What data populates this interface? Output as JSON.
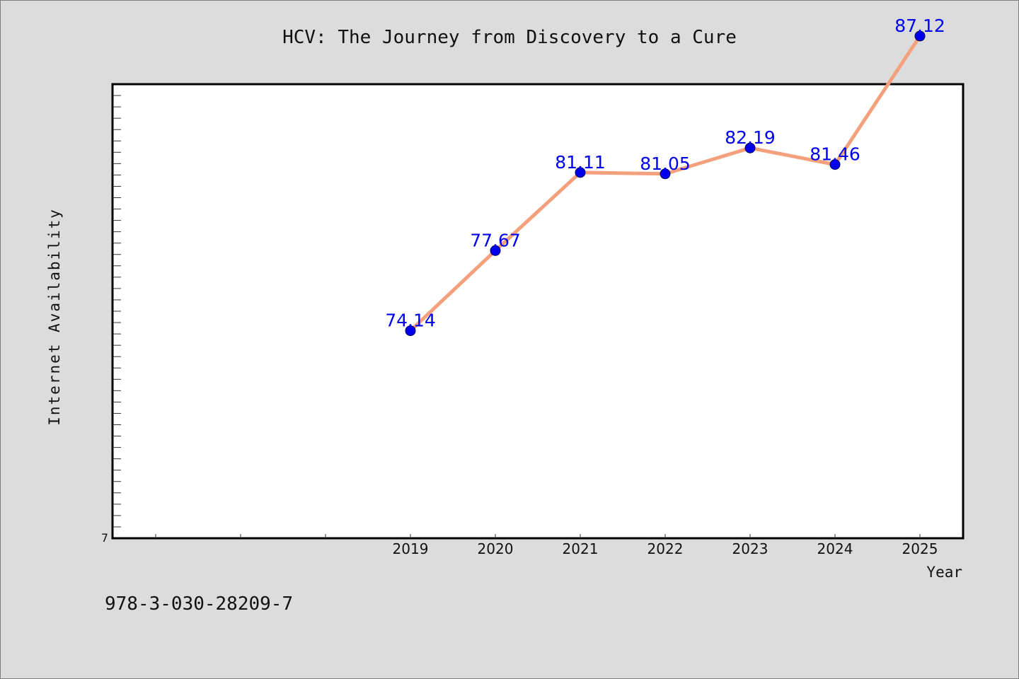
{
  "chart_data": {
    "type": "line",
    "title": "HCV: The Journey from Discovery to a Cure",
    "xlabel": "Year",
    "ylabel": "Internet Availability",
    "x": [
      "2019",
      "2020",
      "2021",
      "2022",
      "2023",
      "2024",
      "2025"
    ],
    "series": [
      {
        "values": [
          74.14,
          77.67,
          81.11,
          81.05,
          82.19,
          81.46,
          87.12
        ]
      }
    ],
    "data_labels": [
      "74.14",
      "77.67",
      "81.11",
      "81.05",
      "82.19",
      "81.46",
      "87.12"
    ],
    "ylim": [
      65,
      85
    ],
    "y_axis_bottom_label": "7",
    "line_color": "#f4a07c",
    "marker_color": "#0000ee",
    "label_color": "#0000ee",
    "plot_background": "#ffffff",
    "figure_background": "#dcdcdc",
    "grid": false
  },
  "footer": {
    "isbn": "978-3-030-28209-7"
  }
}
